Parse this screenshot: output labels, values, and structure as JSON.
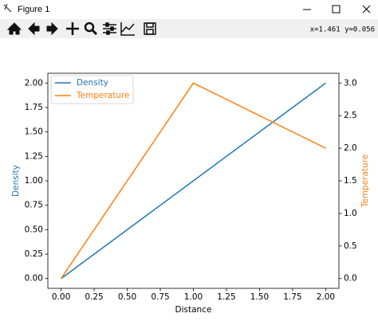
{
  "window": {
    "title": "Figure 1"
  },
  "toolbar": {
    "status": "x=1.461  y=0.056"
  },
  "chart_data": {
    "type": "line",
    "x_label": "Distance",
    "y_label": "Density",
    "y2_label": "Temperature",
    "x": [
      0,
      1,
      2
    ],
    "series": [
      {
        "name": "Density",
        "color": "#1f77b4",
        "values": [
          0,
          1,
          2
        ]
      },
      {
        "name": "Temperature",
        "color": "#ff7f0e",
        "values": [
          0,
          3,
          2
        ],
        "axis": "y2"
      }
    ],
    "xlim": [
      -0.1,
      2.1
    ],
    "ylim": [
      -0.1,
      2.1
    ],
    "y2lim": [
      -0.15,
      3.15
    ],
    "xticks": [
      {
        "value": 0,
        "label": "0.00"
      },
      {
        "value": 0.25,
        "label": "0.25"
      },
      {
        "value": 0.5,
        "label": "0.50"
      },
      {
        "value": 0.75,
        "label": "0.75"
      },
      {
        "value": 1,
        "label": "1.00"
      },
      {
        "value": 1.25,
        "label": "1.25"
      },
      {
        "value": 1.5,
        "label": "1.50"
      },
      {
        "value": 1.75,
        "label": "1.75"
      },
      {
        "value": 2,
        "label": "2.00"
      }
    ],
    "yticks": [
      {
        "value": 0,
        "label": "0.00"
      },
      {
        "value": 0.25,
        "label": "0.25"
      },
      {
        "value": 0.5,
        "label": "0.50"
      },
      {
        "value": 0.75,
        "label": "0.75"
      },
      {
        "value": 1,
        "label": "1.00"
      },
      {
        "value": 1.25,
        "label": "1.25"
      },
      {
        "value": 1.5,
        "label": "1.50"
      },
      {
        "value": 1.75,
        "label": "1.75"
      },
      {
        "value": 2,
        "label": "2.00"
      }
    ],
    "y2ticks": [
      {
        "value": 0,
        "label": "0.0"
      },
      {
        "value": 0.5,
        "label": "0.5"
      },
      {
        "value": 1,
        "label": "1.0"
      },
      {
        "value": 1.5,
        "label": "1.5"
      },
      {
        "value": 2,
        "label": "2.0"
      },
      {
        "value": 2.5,
        "label": "2.5"
      },
      {
        "value": 3,
        "label": "3.0"
      }
    ],
    "grid": false,
    "legend": "upper left"
  }
}
